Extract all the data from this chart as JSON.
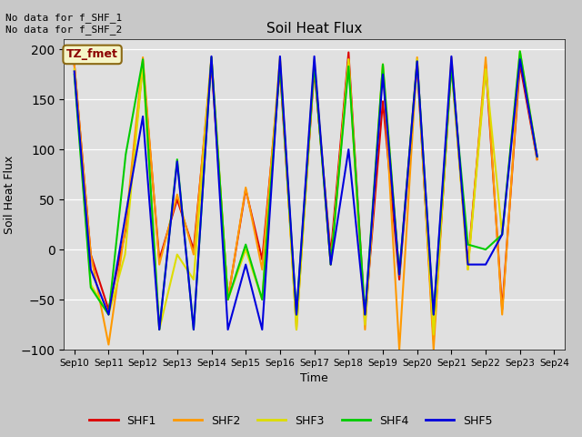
{
  "title": "Soil Heat Flux",
  "xlabel": "Time",
  "ylabel": "Soil Heat Flux",
  "ylim": [
    -100,
    210
  ],
  "yticks": [
    -100,
    -50,
    0,
    50,
    100,
    150,
    200
  ],
  "annotation_text": "No data for f_SHF_1\nNo data for f_SHF_2",
  "legend_label": "TZ_fmet",
  "legend_entries": [
    "SHF1",
    "SHF2",
    "SHF3",
    "SHF4",
    "SHF5"
  ],
  "line_colors": {
    "SHF1": "#dd0000",
    "SHF2": "#ff9900",
    "SHF3": "#dddd00",
    "SHF4": "#00cc00",
    "SHF5": "#0000dd"
  },
  "x_ticks_labels": [
    "Sep 10",
    "Sep 11",
    "Sep 12",
    "Sep 13",
    "Sep 14",
    "Sep 15",
    "Sep 16",
    "Sep 17",
    "Sep 18",
    "Sep 19",
    "Sep 20",
    "Sep 21",
    "Sep 22",
    "Sep 23",
    "Sep 24"
  ],
  "x_ticks": [
    0,
    1,
    2,
    3,
    4,
    5,
    6,
    7,
    8,
    9,
    10,
    11,
    12,
    13,
    14
  ],
  "data": {
    "SHF1": [
      [
        0.0,
        185
      ],
      [
        0.48,
        -5
      ],
      [
        1.0,
        -60
      ],
      [
        1.5,
        20
      ],
      [
        2.0,
        185
      ],
      [
        2.48,
        -10
      ],
      [
        3.0,
        50
      ],
      [
        3.48,
        0
      ],
      [
        4.0,
        185
      ],
      [
        4.48,
        -50
      ],
      [
        5.0,
        60
      ],
      [
        5.48,
        -10
      ],
      [
        6.0,
        180
      ],
      [
        6.48,
        -70
      ],
      [
        7.0,
        180
      ],
      [
        7.48,
        -5
      ],
      [
        8.0,
        197
      ],
      [
        8.48,
        -70
      ],
      [
        9.0,
        148
      ],
      [
        9.48,
        -30
      ],
      [
        10.0,
        185
      ],
      [
        10.48,
        -90
      ],
      [
        11.0,
        185
      ],
      [
        11.48,
        -15
      ],
      [
        12.0,
        185
      ],
      [
        12.48,
        -60
      ],
      [
        13.0,
        185
      ],
      [
        13.5,
        90
      ]
    ],
    "SHF2": [
      [
        0.0,
        185
      ],
      [
        0.48,
        -5
      ],
      [
        1.0,
        -95
      ],
      [
        1.5,
        25
      ],
      [
        2.0,
        192
      ],
      [
        2.48,
        -15
      ],
      [
        3.0,
        55
      ],
      [
        3.48,
        -5
      ],
      [
        4.0,
        192
      ],
      [
        4.48,
        -50
      ],
      [
        5.0,
        62
      ],
      [
        5.48,
        -20
      ],
      [
        6.0,
        190
      ],
      [
        6.48,
        -80
      ],
      [
        7.0,
        185
      ],
      [
        7.48,
        -15
      ],
      [
        8.0,
        190
      ],
      [
        8.48,
        -80
      ],
      [
        9.0,
        185
      ],
      [
        9.48,
        -100
      ],
      [
        10.0,
        192
      ],
      [
        10.48,
        -100
      ],
      [
        11.0,
        192
      ],
      [
        11.48,
        -20
      ],
      [
        12.0,
        192
      ],
      [
        12.48,
        -65
      ],
      [
        13.0,
        192
      ],
      [
        13.5,
        90
      ]
    ],
    "SHF3": [
      [
        0.0,
        180
      ],
      [
        0.48,
        -35
      ],
      [
        1.0,
        -65
      ],
      [
        1.48,
        -5
      ],
      [
        2.0,
        185
      ],
      [
        2.48,
        -80
      ],
      [
        3.0,
        -5
      ],
      [
        3.48,
        -30
      ],
      [
        4.0,
        192
      ],
      [
        4.48,
        -50
      ],
      [
        5.0,
        0
      ],
      [
        5.48,
        -50
      ],
      [
        6.0,
        192
      ],
      [
        6.48,
        -80
      ],
      [
        7.0,
        190
      ],
      [
        7.48,
        -15
      ],
      [
        8.0,
        190
      ],
      [
        8.48,
        -75
      ],
      [
        9.0,
        185
      ],
      [
        9.48,
        -25
      ],
      [
        10.0,
        190
      ],
      [
        10.48,
        -85
      ],
      [
        11.0,
        185
      ],
      [
        11.48,
        -20
      ],
      [
        12.0,
        180
      ],
      [
        12.48,
        15
      ],
      [
        13.0,
        198
      ],
      [
        13.5,
        93
      ]
    ],
    "SHF4": [
      [
        0.0,
        175
      ],
      [
        0.48,
        -38
      ],
      [
        1.0,
        -65
      ],
      [
        1.5,
        95
      ],
      [
        2.0,
        190
      ],
      [
        2.48,
        -80
      ],
      [
        3.0,
        90
      ],
      [
        3.48,
        -80
      ],
      [
        4.0,
        192
      ],
      [
        4.48,
        -50
      ],
      [
        5.0,
        5
      ],
      [
        5.48,
        -50
      ],
      [
        6.0,
        185
      ],
      [
        6.48,
        -65
      ],
      [
        7.0,
        185
      ],
      [
        7.48,
        -15
      ],
      [
        8.0,
        183
      ],
      [
        8.48,
        -65
      ],
      [
        9.0,
        185
      ],
      [
        9.48,
        -25
      ],
      [
        10.0,
        188
      ],
      [
        10.48,
        -65
      ],
      [
        11.0,
        183
      ],
      [
        11.48,
        5
      ],
      [
        12.0,
        0
      ],
      [
        12.48,
        15
      ],
      [
        13.0,
        198
      ],
      [
        13.5,
        93
      ]
    ],
    "SHF5": [
      [
        0.0,
        178
      ],
      [
        0.48,
        -20
      ],
      [
        1.0,
        -65
      ],
      [
        1.5,
        35
      ],
      [
        2.0,
        133
      ],
      [
        2.48,
        -80
      ],
      [
        3.0,
        88
      ],
      [
        3.48,
        -80
      ],
      [
        4.0,
        193
      ],
      [
        4.48,
        -80
      ],
      [
        5.0,
        -15
      ],
      [
        5.48,
        -80
      ],
      [
        6.0,
        193
      ],
      [
        6.48,
        -65
      ],
      [
        7.0,
        193
      ],
      [
        7.48,
        -15
      ],
      [
        8.0,
        100
      ],
      [
        8.48,
        -65
      ],
      [
        9.0,
        175
      ],
      [
        9.48,
        -25
      ],
      [
        10.0,
        188
      ],
      [
        10.48,
        -65
      ],
      [
        11.0,
        193
      ],
      [
        11.48,
        -15
      ],
      [
        12.0,
        -15
      ],
      [
        12.48,
        15
      ],
      [
        13.0,
        190
      ],
      [
        13.5,
        93
      ]
    ]
  },
  "background_color": "#c8c8c8",
  "plot_bg_color": "#e0e0e0"
}
